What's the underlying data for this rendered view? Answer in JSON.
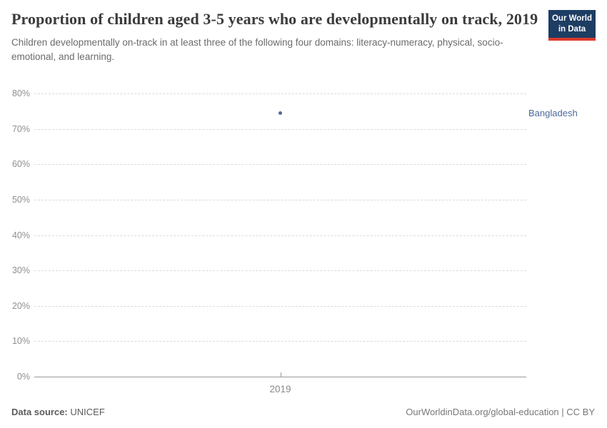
{
  "header": {
    "title": "Proportion of children aged 3-5 years who are developmentally on track, 2019",
    "subtitle": "Children developmentally on-track in at least three of the following four domains: literacy-numeracy, physical, socio-emotional, and learning.",
    "logo": {
      "line1": "Our World",
      "line2": "in Data",
      "bg_color": "#1d3d63",
      "accent_color": "#dc3a2c"
    }
  },
  "chart_data": {
    "type": "scatter",
    "title": "Proportion of children aged 3-5 years who are developmentally on track, 2019",
    "x": [
      2019
    ],
    "series": [
      {
        "name": "Bangladesh",
        "values": [
          74.4
        ],
        "color": "#4c6a9c"
      }
    ],
    "xlabel": "",
    "ylabel": "",
    "ylim": [
      0,
      80
    ],
    "yticks": [
      0,
      10,
      20,
      30,
      40,
      50,
      60,
      70,
      80
    ],
    "ytick_format": "{v}%",
    "xticks": [
      2019
    ],
    "grid": "horizontal-dashed",
    "legend_position": "right-of-plot"
  },
  "footer": {
    "source_label": "Data source:",
    "source_value": "UNICEF",
    "right_text": "OurWorldinData.org/global-education | CC BY"
  }
}
